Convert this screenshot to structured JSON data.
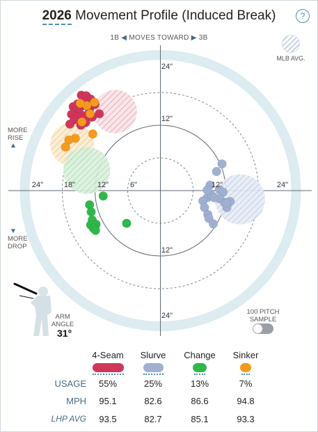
{
  "header": {
    "year": "2026",
    "title_rest": "Movement Profile (Induced Break)",
    "help_label": "?"
  },
  "direction": {
    "left": "1B",
    "middle": "MOVES TOWARD",
    "right": "3B"
  },
  "mlb_avg_label": "MLB AVG.",
  "side_labels": {
    "rise_line1": "MORE",
    "rise_line2": "RISE",
    "drop_line1": "MORE",
    "drop_line2": "DROP"
  },
  "ring_labels": {
    "outer": "24\"",
    "mid": "18\"",
    "inner": "12\"",
    "center": "6\""
  },
  "arm_angle": {
    "label_line1": "ARM",
    "label_line2": "ANGLE",
    "value": "31°"
  },
  "sample_toggle": {
    "label_line1": "100 PITCH",
    "label_line2": "SAMPLE",
    "on": false
  },
  "colors": {
    "fourseam": "#d0365a",
    "slurve": "#9fb0d2",
    "change": "#2fb84a",
    "sinker": "#f59a1c",
    "field": "#dcecf1",
    "accent": "#4a8fb0"
  },
  "table": {
    "row_labels": [
      "USAGE",
      "MPH",
      "LHP AVG"
    ],
    "pitches": [
      {
        "name": "4-Seam",
        "usage": "55%",
        "mph": "95.1",
        "lhp_avg": "93.5"
      },
      {
        "name": "Slurve",
        "usage": "25%",
        "mph": "82.6",
        "lhp_avg": "82.7"
      },
      {
        "name": "Change",
        "usage": "13%",
        "mph": "86.6",
        "lhp_avg": "85.1"
      },
      {
        "name": "Sinker",
        "usage": "7%",
        "mph": "94.8",
        "lhp_avg": "93.3"
      }
    ]
  },
  "chart_data": {
    "type": "scatter",
    "title": "Movement Profile (Induced Break)",
    "xlabel": "",
    "ylabel": "",
    "units": "inches",
    "xlim": [
      -24,
      24
    ],
    "ylim": [
      -24,
      24
    ],
    "rings": [
      6,
      12,
      18,
      24
    ],
    "series": [
      {
        "name": "4-Seam",
        "color": "#d0365a",
        "x": [
          -14.5,
          -13.6,
          -12.8,
          -13.9,
          -15.2,
          -16.0,
          -14.2,
          -13.0,
          -12.0,
          -15.5,
          -14.8,
          -13.3,
          -16.3,
          -15.0,
          -12.5,
          -14.0,
          -15.8,
          -13.7,
          -16.6,
          -14.6,
          -11.2,
          -12.4
        ],
        "y": [
          17.5,
          17.4,
          16.8,
          16.2,
          15.9,
          15.4,
          15.6,
          15.0,
          15.8,
          14.6,
          14.2,
          14.0,
          14.0,
          13.6,
          13.5,
          13.2,
          13.0,
          12.5,
          12.2,
          12.0,
          14.1,
          16.0
        ]
      },
      {
        "name": "Slurve",
        "color": "#9fb0d2",
        "x": [
          11.3,
          10.3,
          9.1,
          10.8,
          11.5,
          9.1,
          8.6,
          9.5,
          10.9,
          9.9,
          11.8,
          12.8,
          7.8,
          8.1,
          8.7,
          8.9,
          9.7,
          12.2,
          12.1,
          8.6
        ],
        "y": [
          4.9,
          3.5,
          1.0,
          0.2,
          -0.3,
          -0.6,
          -1.3,
          -1.0,
          -1.5,
          -1.3,
          -2.2,
          -2.0,
          -1.9,
          -3.1,
          -4.4,
          -5.1,
          -6.1,
          -3.1,
          -2.3,
          0.1
        ]
      },
      {
        "name": "Change",
        "color": "#2fb84a",
        "x": [
          -10.5,
          -13.0,
          -12.7,
          -12.5,
          -12.8,
          -11.8,
          -12.3,
          -11.9,
          -6.2
        ],
        "y": [
          -1.0,
          -2.6,
          -3.9,
          -5.4,
          -6.3,
          -6.2,
          -6.9,
          -7.3,
          -6.0
        ]
      },
      {
        "name": "Sinker",
        "color": "#f59a1c",
        "x": [
          -12.1,
          -13.5,
          -14.7,
          -12.9,
          -14.4,
          -12.4,
          -15.6,
          -16.8,
          -17.4
        ],
        "y": [
          16.2,
          15.6,
          16.0,
          14.1,
          12.6,
          10.4,
          9.6,
          9.3,
          8.0
        ]
      }
    ],
    "mlb_average_zones": [
      {
        "name": "4-Seam",
        "x": -8.3,
        "y": 14.5,
        "r": 4.0
      },
      {
        "name": "Sinker",
        "x": -16.2,
        "y": 8.5,
        "r": 4.0
      },
      {
        "name": "Change",
        "x": -13.5,
        "y": 3.7,
        "r": 4.3
      },
      {
        "name": "Slurve",
        "x": 14.6,
        "y": -1.6,
        "r": 4.6
      }
    ]
  }
}
